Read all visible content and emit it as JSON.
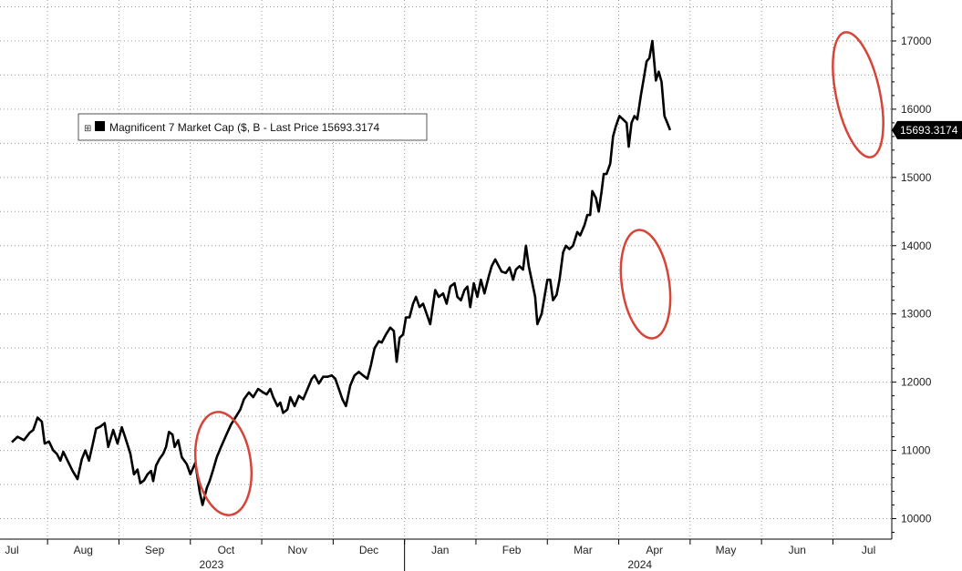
{
  "chart_data": {
    "type": "line",
    "title": "",
    "xlabel": "",
    "ylabel": "",
    "ylim": [
      9700,
      17600
    ],
    "y_ticks": [
      10000,
      11000,
      12000,
      13000,
      14000,
      15000,
      16000,
      17000
    ],
    "y_tick_labels": [
      "10000",
      "11000",
      "12000",
      "13000",
      "14000",
      "15000",
      "16000",
      "17000"
    ],
    "x_month_labels": [
      "Jul",
      "Aug",
      "Sep",
      "Oct",
      "Nov",
      "Dec",
      "Jan",
      "Feb",
      "Mar",
      "Apr",
      "May",
      "Jun",
      "Jul"
    ],
    "x_year_labels": [
      {
        "label": "2023",
        "month_index": 3
      },
      {
        "label": "2024",
        "month_index": 9
      }
    ],
    "grid": true,
    "legend": {
      "position": "top-left",
      "symbol": "⊞",
      "text": "Magnificent 7 Market Cap ($, B - Last Price 15693.3174"
    },
    "last_value_label": "15693.3174",
    "series": [
      {
        "name": "Magnificent 7 Market Cap ($, B",
        "color": "#000000",
        "points": [
          [
            0.0,
            11120
          ],
          [
            0.08,
            11200
          ],
          [
            0.17,
            11150
          ],
          [
            0.25,
            11260
          ],
          [
            0.3,
            11300
          ],
          [
            0.36,
            11480
          ],
          [
            0.42,
            11420
          ],
          [
            0.46,
            11100
          ],
          [
            0.52,
            11130
          ],
          [
            0.58,
            11000
          ],
          [
            0.63,
            10950
          ],
          [
            0.68,
            10850
          ],
          [
            0.72,
            10980
          ],
          [
            0.78,
            10850
          ],
          [
            0.85,
            10700
          ],
          [
            0.92,
            10580
          ],
          [
            0.98,
            10870
          ],
          [
            1.03,
            11000
          ],
          [
            1.08,
            10850
          ],
          [
            1.13,
            11080
          ],
          [
            1.18,
            11320
          ],
          [
            1.24,
            11350
          ],
          [
            1.3,
            11400
          ],
          [
            1.35,
            11050
          ],
          [
            1.42,
            11300
          ],
          [
            1.48,
            11100
          ],
          [
            1.54,
            11340
          ],
          [
            1.6,
            11150
          ],
          [
            1.66,
            10950
          ],
          [
            1.71,
            10650
          ],
          [
            1.76,
            10720
          ],
          [
            1.8,
            10520
          ],
          [
            1.85,
            10560
          ],
          [
            1.9,
            10650
          ],
          [
            1.95,
            10700
          ],
          [
            1.98,
            10550
          ],
          [
            2.02,
            10780
          ],
          [
            2.07,
            10880
          ],
          [
            2.12,
            10950
          ],
          [
            2.16,
            11050
          ],
          [
            2.2,
            11270
          ],
          [
            2.25,
            11230
          ],
          [
            2.28,
            11050
          ],
          [
            2.33,
            11150
          ],
          [
            2.38,
            10900
          ],
          [
            2.45,
            10800
          ],
          [
            2.5,
            10650
          ],
          [
            2.57,
            10820
          ],
          [
            2.63,
            10400
          ],
          [
            2.67,
            10200
          ],
          [
            2.73,
            10450
          ],
          [
            2.77,
            10550
          ],
          [
            2.82,
            10720
          ],
          [
            2.87,
            10900
          ],
          [
            2.93,
            11050
          ],
          [
            3.0,
            11220
          ],
          [
            3.07,
            11380
          ],
          [
            3.13,
            11480
          ],
          [
            3.2,
            11600
          ],
          [
            3.25,
            11750
          ],
          [
            3.32,
            11850
          ],
          [
            3.38,
            11780
          ],
          [
            3.45,
            11900
          ],
          [
            3.52,
            11850
          ],
          [
            3.57,
            11820
          ],
          [
            3.62,
            11900
          ],
          [
            3.66,
            11780
          ],
          [
            3.72,
            11650
          ],
          [
            3.76,
            11700
          ],
          [
            3.8,
            11550
          ],
          [
            3.86,
            11600
          ],
          [
            3.9,
            11780
          ],
          [
            3.96,
            11650
          ],
          [
            4.02,
            11800
          ],
          [
            4.08,
            11750
          ],
          [
            4.15,
            11920
          ],
          [
            4.2,
            12050
          ],
          [
            4.24,
            12100
          ],
          [
            4.3,
            11980
          ],
          [
            4.36,
            12080
          ],
          [
            4.42,
            12080
          ],
          [
            4.48,
            12100
          ],
          [
            4.53,
            12050
          ],
          [
            4.58,
            11900
          ],
          [
            4.63,
            11750
          ],
          [
            4.68,
            11650
          ],
          [
            4.74,
            11950
          ],
          [
            4.8,
            12100
          ],
          [
            4.86,
            12150
          ],
          [
            4.92,
            12100
          ],
          [
            4.98,
            12050
          ],
          [
            5.03,
            12250
          ],
          [
            5.08,
            12500
          ],
          [
            5.14,
            12600
          ],
          [
            5.18,
            12580
          ],
          [
            5.24,
            12700
          ],
          [
            5.3,
            12800
          ],
          [
            5.35,
            12750
          ],
          [
            5.39,
            12300
          ],
          [
            5.43,
            12650
          ],
          [
            5.48,
            12700
          ],
          [
            5.52,
            12950
          ],
          [
            5.57,
            12950
          ],
          [
            5.62,
            13150
          ],
          [
            5.66,
            13250
          ],
          [
            5.71,
            13100
          ],
          [
            5.76,
            13150
          ],
          [
            5.81,
            13000
          ],
          [
            5.86,
            12850
          ],
          [
            5.93,
            13350
          ],
          [
            5.98,
            13250
          ],
          [
            6.04,
            13300
          ],
          [
            6.09,
            13150
          ],
          [
            6.14,
            13400
          ],
          [
            6.2,
            13450
          ],
          [
            6.24,
            13250
          ],
          [
            6.29,
            13200
          ],
          [
            6.34,
            13350
          ],
          [
            6.38,
            13400
          ],
          [
            6.42,
            13100
          ],
          [
            6.47,
            13450
          ],
          [
            6.52,
            13250
          ],
          [
            6.57,
            13500
          ],
          [
            6.62,
            13300
          ],
          [
            6.68,
            13550
          ],
          [
            6.72,
            13700
          ],
          [
            6.77,
            13800
          ],
          [
            6.82,
            13700
          ],
          [
            6.86,
            13620
          ],
          [
            6.92,
            13600
          ],
          [
            6.97,
            13680
          ],
          [
            7.02,
            13500
          ],
          [
            7.06,
            13650
          ],
          [
            7.11,
            13700
          ],
          [
            7.16,
            13650
          ],
          [
            7.2,
            14000
          ],
          [
            7.24,
            13700
          ],
          [
            7.28,
            13500
          ],
          [
            7.33,
            13250
          ],
          [
            7.36,
            12850
          ],
          [
            7.42,
            13000
          ],
          [
            7.46,
            13250
          ],
          [
            7.5,
            13500
          ],
          [
            7.54,
            13500
          ],
          [
            7.58,
            13200
          ],
          [
            7.63,
            13280
          ],
          [
            7.67,
            13500
          ],
          [
            7.72,
            13900
          ],
          [
            7.76,
            14000
          ],
          [
            7.81,
            13950
          ],
          [
            7.86,
            14000
          ],
          [
            7.92,
            14200
          ],
          [
            7.96,
            14150
          ],
          [
            8.02,
            14300
          ],
          [
            8.06,
            14450
          ],
          [
            8.1,
            14450
          ],
          [
            8.13,
            14800
          ],
          [
            8.18,
            14700
          ],
          [
            8.22,
            14500
          ],
          [
            8.26,
            14800
          ],
          [
            8.29,
            15050
          ],
          [
            8.33,
            15050
          ],
          [
            8.38,
            15200
          ],
          [
            8.42,
            15600
          ],
          [
            8.46,
            15750
          ],
          [
            8.51,
            15900
          ],
          [
            8.56,
            15850
          ],
          [
            8.61,
            15800
          ],
          [
            8.64,
            15450
          ],
          [
            8.68,
            15800
          ],
          [
            8.72,
            15900
          ],
          [
            8.76,
            15850
          ],
          [
            8.81,
            16200
          ],
          [
            8.85,
            16450
          ],
          [
            8.89,
            16700
          ],
          [
            8.93,
            16750
          ],
          [
            8.97,
            17000
          ],
          [
            9.02,
            16420
          ],
          [
            9.06,
            16550
          ],
          [
            9.1,
            16400
          ],
          [
            9.14,
            15900
          ],
          [
            9.18,
            15800
          ],
          [
            9.22,
            15693
          ]
        ]
      }
    ]
  }
}
